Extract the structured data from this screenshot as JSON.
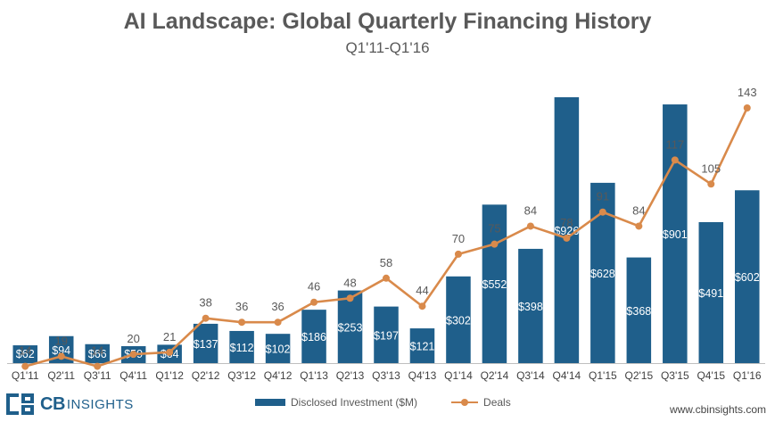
{
  "header": {
    "title": "AI Landscape: Global Quarterly Financing History",
    "subtitle": "Q1'11-Q1'16"
  },
  "chart_data": {
    "type": "bar",
    "categories": [
      "Q1'11",
      "Q2'11",
      "Q3'11",
      "Q4'11",
      "Q1'12",
      "Q2'12",
      "Q3'12",
      "Q4'12",
      "Q1'13",
      "Q2'13",
      "Q3'13",
      "Q4'13",
      "Q1'14",
      "Q2'14",
      "Q3'14",
      "Q4'14",
      "Q1'15",
      "Q2'15",
      "Q3'15",
      "Q4'15",
      "Q1'16"
    ],
    "series": [
      {
        "name": "Disclosed Investment ($M)",
        "type": "bar",
        "color": "#1f5f8b",
        "values": [
          62,
          94,
          66,
          59,
          64,
          137,
          112,
          102,
          186,
          253,
          197,
          121,
          302,
          552,
          398,
          926,
          628,
          368,
          901,
          491,
          602
        ],
        "labels": [
          "$62",
          "$94",
          "$66",
          "$59",
          "$64",
          "$137",
          "$112",
          "$102",
          "$186",
          "$253",
          "$197",
          "$121",
          "$302",
          "$552",
          "$398",
          "$926",
          "$628",
          "$368",
          "$901",
          "$491",
          "$602"
        ]
      },
      {
        "name": "Deals",
        "type": "line",
        "color": "#d98a4b",
        "values": [
          14,
          19,
          14,
          20,
          21,
          38,
          36,
          36,
          46,
          48,
          58,
          44,
          70,
          75,
          84,
          78,
          91,
          84,
          117,
          105,
          143
        ]
      }
    ],
    "legend_position": "bottom",
    "grid": false
  },
  "footer": {
    "logo_cb": "CB",
    "logo_insights": "INSIGHTS",
    "url": "www.cbinsights.com"
  }
}
